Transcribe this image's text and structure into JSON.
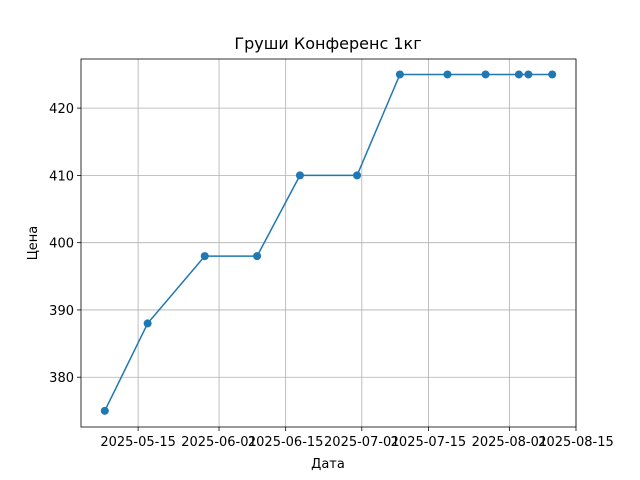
{
  "chart_data": {
    "type": "line",
    "title": "Груши Конференс 1кг",
    "xlabel": "Дата",
    "ylabel": "Цена",
    "x": [
      "2025-05-08",
      "2025-05-17",
      "2025-05-29",
      "2025-06-09",
      "2025-06-18",
      "2025-06-30",
      "2025-07-09",
      "2025-07-19",
      "2025-07-27",
      "2025-08-03",
      "2025-08-05",
      "2025-08-10"
    ],
    "series": [
      {
        "name": "Груши Конференс 1кг",
        "color": "#1f77b4",
        "values": [
          375,
          388,
          398,
          398,
          410,
          410,
          425,
          425,
          425,
          425,
          425,
          425
        ]
      }
    ],
    "xlim": [
      "2025-05-03",
      "2025-08-15"
    ],
    "xticks": [
      "2025-05-15",
      "2025-06-01",
      "2025-06-15",
      "2025-07-01",
      "2025-07-15",
      "2025-08-01",
      "2025-08-15"
    ],
    "ylim": [
      372.6,
      427.3
    ],
    "yticks": [
      380,
      390,
      400,
      410,
      420
    ],
    "grid": true
  }
}
